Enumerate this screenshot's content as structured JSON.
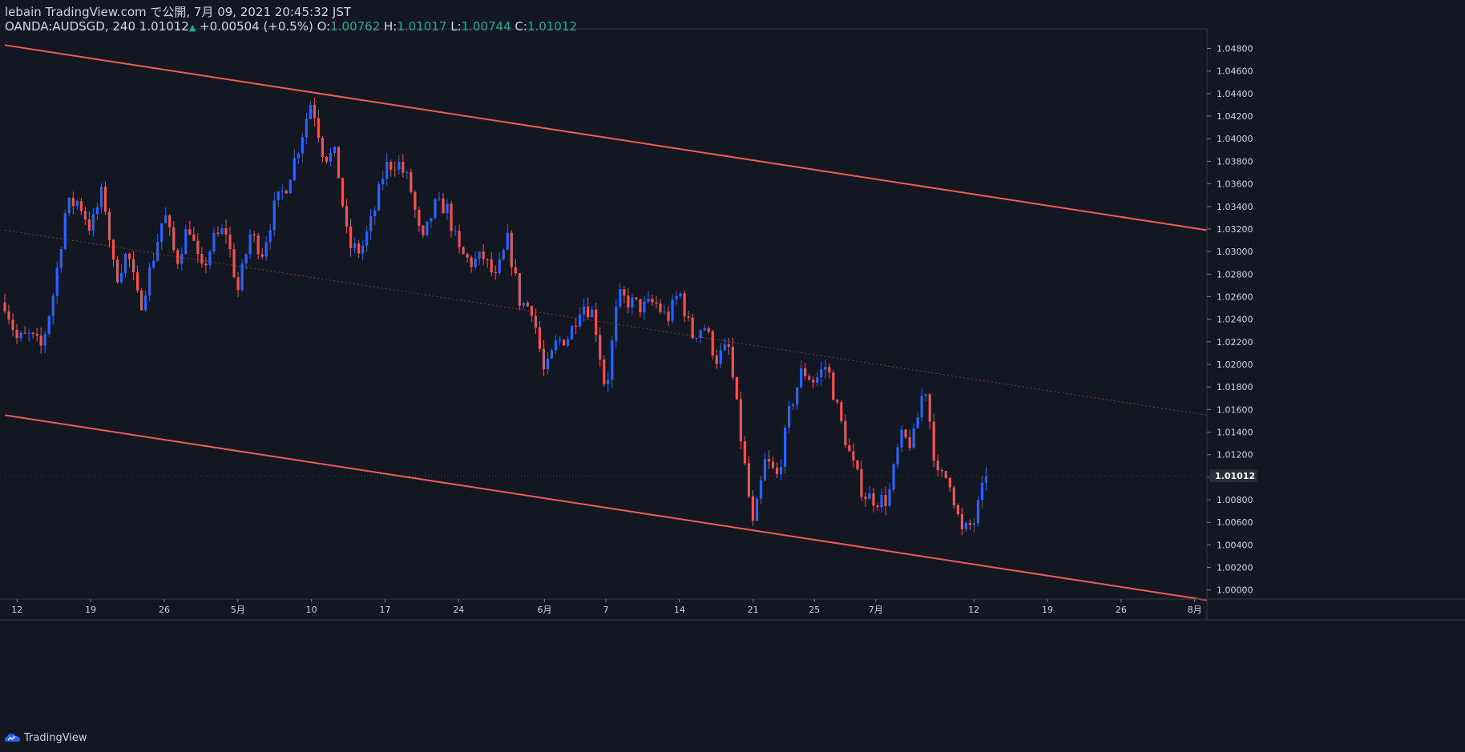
{
  "header": {
    "published": "lebain TradingView.com で公開, 7月 09, 2021 20:45:32 JST",
    "symbol": "OANDA:AUDSGD, 240",
    "last": "1.01012",
    "change": "+0.00504 (+0.5%)",
    "o_label": "O:",
    "o_value": "1.00762",
    "h_label": "H:",
    "h_value": "1.01017",
    "l_label": "L:",
    "l_value": "1.00744",
    "c_label": "C:",
    "c_value": "1.01012"
  },
  "footer": {
    "brand": "TradingView"
  },
  "colors": {
    "up": "#2962ff",
    "down": "#ef5350",
    "bg": "#131722",
    "text": "#d1d4dc",
    "channel": "#f05a5a",
    "axis": "#363a45"
  },
  "chart_data": {
    "type": "candlestick",
    "symbol": "OANDA:AUDSGD",
    "timeframe": "240",
    "ylim": [
      0.9992,
      1.0496
    ],
    "y_ticks": [
      1.0,
      1.002,
      1.004,
      1.006,
      1.008,
      1.01,
      1.012,
      1.014,
      1.016,
      1.018,
      1.02,
      1.022,
      1.024,
      1.026,
      1.028,
      1.03,
      1.032,
      1.034,
      1.036,
      1.038,
      1.04,
      1.042,
      1.044,
      1.046,
      1.048
    ],
    "y_tick_labels": [
      "1.00000",
      "1.00200",
      "1.00400",
      "1.00600",
      "1.00800",
      "1.01000",
      "1.01200",
      "1.01400",
      "1.01600",
      "1.01800",
      "1.02000",
      "1.02200",
      "1.02400",
      "1.02600",
      "1.02800",
      "1.03000",
      "1.03200",
      "1.03400",
      "1.03600",
      "1.03800",
      "1.04000",
      "1.04200",
      "1.04400",
      "1.04600",
      "1.04800"
    ],
    "last_price": 1.01012,
    "last_price_label": "1.01012",
    "xlim": [
      0,
      98
    ],
    "x_ticks": [
      {
        "t": 1,
        "label": "12"
      },
      {
        "t": 7,
        "label": "19"
      },
      {
        "t": 13,
        "label": "26"
      },
      {
        "t": 19,
        "label": "5月"
      },
      {
        "t": 25,
        "label": "10"
      },
      {
        "t": 31,
        "label": "17"
      },
      {
        "t": 37,
        "label": "24"
      },
      {
        "t": 44,
        "label": "6月"
      },
      {
        "t": 49,
        "label": "7"
      },
      {
        "t": 55,
        "label": "14"
      },
      {
        "t": 61,
        "label": "21"
      },
      {
        "t": 66,
        "label": "25"
      },
      {
        "t": 71,
        "label": "7月"
      },
      {
        "t": 79,
        "label": "12"
      },
      {
        "t": 85,
        "label": "19"
      },
      {
        "t": 91,
        "label": "26"
      },
      {
        "t": 97,
        "label": "8月"
      }
    ],
    "close_path": [
      [
        0,
        1.0255
      ],
      [
        1,
        1.0222
      ],
      [
        2,
        1.0225
      ],
      [
        3,
        1.0215
      ],
      [
        4,
        1.0265
      ],
      [
        5,
        1.034
      ],
      [
        6,
        1.0345
      ],
      [
        7,
        1.032
      ],
      [
        8,
        1.0355
      ],
      [
        9,
        1.0275
      ],
      [
        10,
        1.03
      ],
      [
        11,
        1.025
      ],
      [
        12,
        1.029
      ],
      [
        13,
        1.0335
      ],
      [
        14,
        1.029
      ],
      [
        15,
        1.0325
      ],
      [
        16,
        1.028
      ],
      [
        17,
        1.031
      ],
      [
        18,
        1.032
      ],
      [
        19,
        1.0265
      ],
      [
        20,
        1.0315
      ],
      [
        21,
        1.03
      ],
      [
        22,
        1.034
      ],
      [
        23,
        1.036
      ],
      [
        24,
        1.0395
      ],
      [
        25,
        1.0435
      ],
      [
        26,
        1.0385
      ],
      [
        27,
        1.0385
      ],
      [
        28,
        1.0305
      ],
      [
        29,
        1.03
      ],
      [
        30,
        1.033
      ],
      [
        31,
        1.0375
      ],
      [
        32,
        1.038
      ],
      [
        33,
        1.036
      ],
      [
        34,
        1.0305
      ],
      [
        35,
        1.034
      ],
      [
        36,
        1.034
      ],
      [
        37,
        1.03
      ],
      [
        38,
        1.029
      ],
      [
        39,
        1.0295
      ],
      [
        40,
        1.0275
      ],
      [
        41,
        1.031
      ],
      [
        42,
        1.0255
      ],
      [
        43,
        1.025
      ],
      [
        44,
        1.019
      ],
      [
        45,
        1.022
      ],
      [
        46,
        1.0225
      ],
      [
        47,
        1.0255
      ],
      [
        48,
        1.0245
      ],
      [
        49,
        1.0175
      ],
      [
        50,
        1.026
      ],
      [
        51,
        1.0255
      ],
      [
        52,
        1.025
      ],
      [
        53,
        1.0255
      ],
      [
        54,
        1.024
      ],
      [
        55,
        1.0265
      ],
      [
        56,
        1.0225
      ],
      [
        57,
        1.0235
      ],
      [
        58,
        1.0205
      ],
      [
        59,
        1.0215
      ],
      [
        60,
        1.0135
      ],
      [
        61,
        1.0055
      ],
      [
        62,
        1.0115
      ],
      [
        63,
        1.01
      ],
      [
        64,
        1.016
      ],
      [
        65,
        1.0195
      ],
      [
        66,
        1.0185
      ],
      [
        67,
        1.02
      ],
      [
        68,
        1.0155
      ],
      [
        69,
        1.0115
      ],
      [
        70,
        1.0085
      ],
      [
        71,
        1.008
      ],
      [
        72,
        1.008
      ],
      [
        73,
        1.0135
      ],
      [
        74,
        1.013
      ],
      [
        75,
        1.0185
      ],
      [
        76,
        1.01
      ],
      [
        77,
        1.01
      ],
      [
        78,
        1.005
      ],
      [
        79,
        1.006
      ],
      [
        80,
        1.0101
      ]
    ],
    "candle_count": 245,
    "channel": {
      "upper": [
        [
          0,
          1.0483
        ],
        [
          98,
          1.0319
        ]
      ],
      "lower": [
        [
          0,
          1.0155
        ],
        [
          98,
          0.9991
        ]
      ],
      "midline": [
        [
          0,
          1.0319
        ],
        [
          98,
          1.0155
        ]
      ]
    }
  }
}
